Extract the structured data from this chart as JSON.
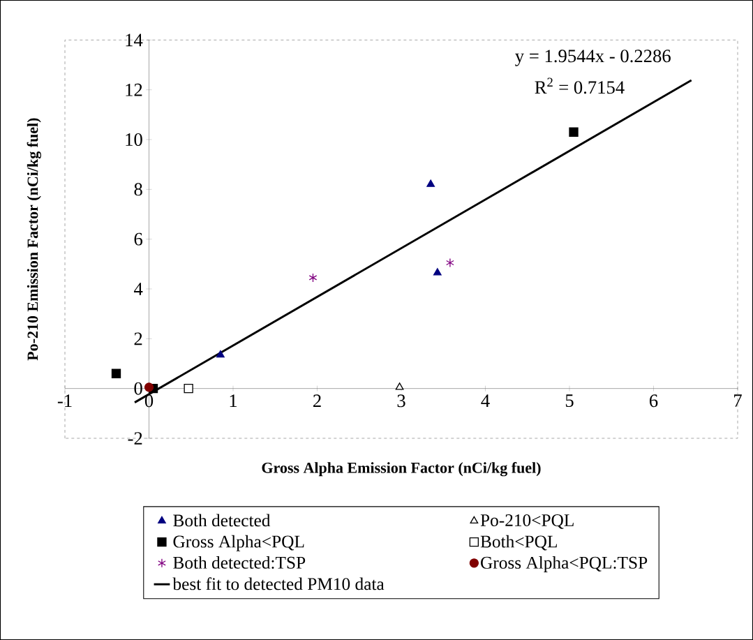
{
  "chart_data": {
    "type": "scatter",
    "xlabel": "Gross Alpha Emission Factor (nCi/kg fuel)",
    "ylabel": "Po-210 Emission Factor (nCi/kg fuel)",
    "xlim": [
      -1,
      7
    ],
    "ylim": [
      -2,
      14
    ],
    "xticks": [
      -1,
      0,
      1,
      2,
      3,
      4,
      5,
      6,
      7
    ],
    "yticks": [
      -2,
      0,
      2,
      4,
      6,
      8,
      10,
      12,
      14
    ],
    "grid": false,
    "legend": "bottom",
    "annotations": [
      "y = 1.9544x - 0.2286",
      "R$^{2}$ = 0.7154"
    ],
    "series": [
      {
        "name": "Both detected",
        "color": "#000080",
        "marker": "triangle",
        "x": [
          0.85,
          3.35,
          3.43
        ],
        "values": [
          1.35,
          8.2,
          4.65
        ]
      },
      {
        "name": "Po-210<PQL",
        "color": "#ffffff",
        "marker": "triangle",
        "x": [
          2.98
        ],
        "values": [
          0.05
        ]
      },
      {
        "name": "Gross Alpha<PQL",
        "color": "#000000",
        "marker": "square",
        "x": [
          -0.39,
          0.05,
          5.05
        ],
        "values": [
          0.6,
          0.0,
          10.3
        ]
      },
      {
        "name": "Both<PQL",
        "color": "#ffffff",
        "marker": "square",
        "x": [
          0.47
        ],
        "values": [
          0.0
        ]
      },
      {
        "name": "Both detected:TSP",
        "color": "#800080",
        "marker": "cross",
        "x": [
          1.95,
          3.58
        ],
        "values": [
          4.45,
          5.05
        ]
      },
      {
        "name": "Gross Alpha<PQL:TSP",
        "color": "#800000",
        "marker": "circle",
        "x": [
          0.0
        ],
        "values": [
          0.05
        ]
      },
      {
        "name": "best fit to detected PM10 data",
        "type": "line",
        "color": "#000000",
        "marker": "none",
        "line_style": "solid",
        "x": [
          -0.17,
          6.45
        ],
        "values": [
          -0.56,
          12.38
        ]
      }
    ]
  }
}
